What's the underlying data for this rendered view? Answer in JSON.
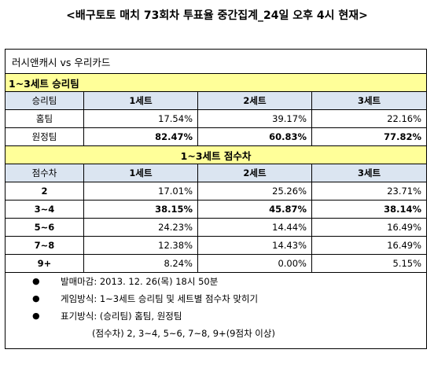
{
  "page_title": "<배구토토 매치 73회차 투표율 중간집계_24일 오후 4시 현재>",
  "match": "러시앤캐시 vs 우리카드",
  "section1": {
    "title": "1~3세트 승리팀",
    "headers": [
      "승리팀",
      "1세트",
      "2세트",
      "3세트"
    ],
    "rows": [
      {
        "label": "홈팀",
        "values": [
          "17.54%",
          "39.17%",
          "22.16%"
        ]
      },
      {
        "label": "원정팀",
        "values": [
          "82.47%",
          "60.83%",
          "77.82%"
        ]
      }
    ]
  },
  "section2": {
    "title": "1~3세트 점수차",
    "headers": [
      "점수차",
      "1세트",
      "2세트",
      "3세트"
    ],
    "rows": [
      {
        "label": "2",
        "values": [
          "17.01%",
          "25.26%",
          "23.71%"
        ]
      },
      {
        "label": "3~4",
        "values": [
          "38.15%",
          "45.87%",
          "38.14%"
        ]
      },
      {
        "label": "5~6",
        "values": [
          "24.23%",
          "14.44%",
          "16.49%"
        ]
      },
      {
        "label": "7~8",
        "values": [
          "12.38%",
          "14.43%",
          "16.49%"
        ]
      },
      {
        "label": "9+",
        "values": [
          "8.24%",
          "0.00%",
          "5.15%"
        ]
      }
    ]
  },
  "notes": {
    "bullet": "●",
    "deadline": "발매마감: 2013. 12. 26(목) 18시 50분",
    "method": "게임방식: 1~3세트 승리팀 및 세트별 점수차 맞히기",
    "display": "표기방식: (승리팀) 홈팀, 원정팀",
    "display_cont": "(점수차) 2, 3~4, 5~6, 7~8, 9+(9점차 이상)"
  }
}
